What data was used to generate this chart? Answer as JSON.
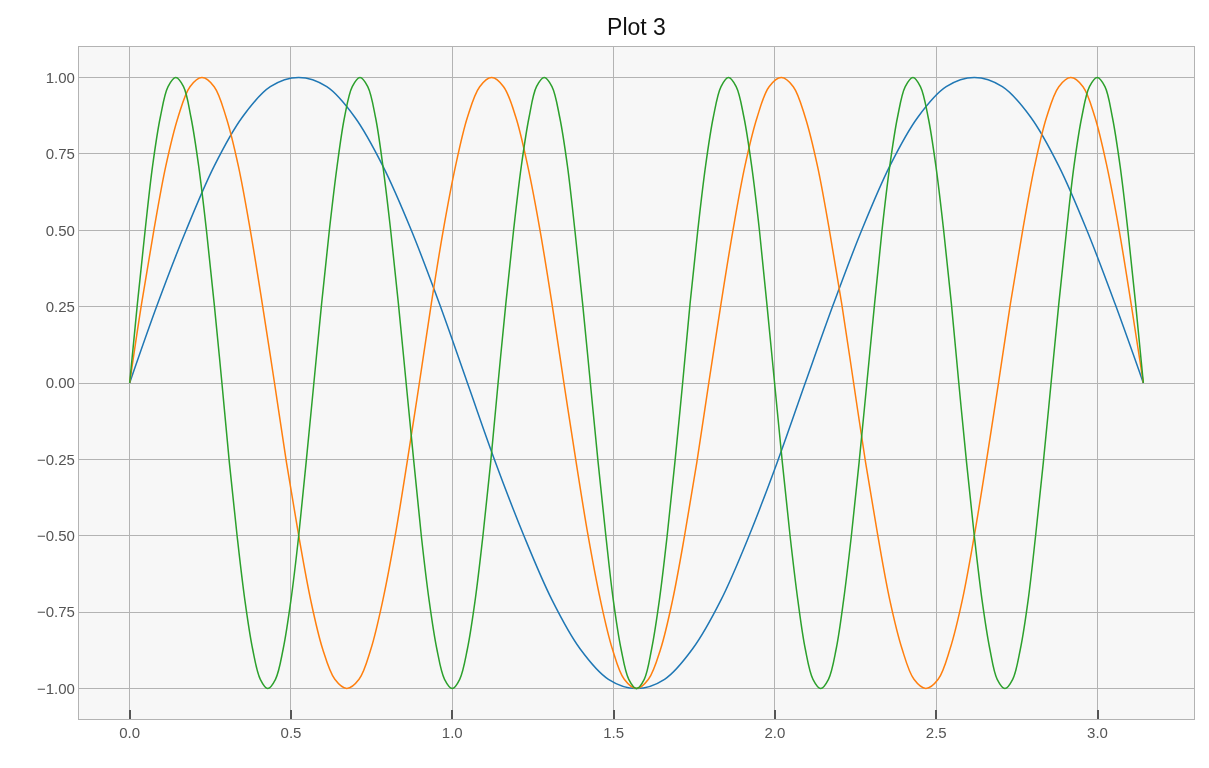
{
  "chart_data": {
    "type": "line",
    "title": "Plot 3",
    "series": [
      {
        "color": "#1f77b4",
        "x": [
          0,
          0.087,
          0.175,
          0.262,
          0.349,
          0.436,
          0.524,
          0.611,
          0.698,
          0.785,
          0.873,
          0.96,
          1.047,
          1.134,
          1.222,
          1.309,
          1.396,
          1.484,
          1.571,
          1.658,
          1.745,
          1.833,
          1.92,
          2.007,
          2.094,
          2.182,
          2.269,
          2.356,
          2.443,
          2.531,
          2.618,
          2.705,
          2.793,
          2.88,
          2.967,
          3.054,
          3.142
        ],
        "values": [
          0,
          0.26,
          0.5,
          0.71,
          0.87,
          0.97,
          1,
          0.97,
          0.87,
          0.71,
          0.5,
          0.26,
          0,
          -0.26,
          -0.5,
          -0.71,
          -0.87,
          -0.97,
          -1,
          -0.97,
          -0.87,
          -0.71,
          -0.5,
          -0.26,
          0,
          0.26,
          0.5,
          0.71,
          0.87,
          0.97,
          1,
          0.97,
          0.87,
          0.71,
          0.5,
          0.26,
          0
        ]
      },
      {
        "color": "#ff7f0e",
        "x": [
          0,
          0.037,
          0.075,
          0.112,
          0.15,
          0.187,
          0.224,
          0.262,
          0.299,
          0.337,
          0.374,
          0.411,
          0.449,
          0.486,
          0.524,
          0.561,
          0.598,
          0.636,
          0.673,
          0.711,
          0.748,
          0.785,
          0.823,
          0.86,
          0.898,
          0.935,
          0.972,
          1.01,
          1.047,
          1.085,
          1.122,
          1.159,
          1.197,
          1.234,
          1.272,
          1.309,
          1.346,
          1.384,
          1.421,
          1.459,
          1.496,
          1.533,
          1.571,
          1.608,
          1.646,
          1.683,
          1.72,
          1.758,
          1.795,
          1.833,
          1.87,
          1.907,
          1.945,
          1.982,
          2.02,
          2.057,
          2.094,
          2.132,
          2.169,
          2.207,
          2.244,
          2.281,
          2.319,
          2.356,
          2.394,
          2.431,
          2.468,
          2.506,
          2.543,
          2.581,
          2.618,
          2.655,
          2.693,
          2.73,
          2.768,
          2.805,
          2.842,
          2.88,
          2.917,
          2.955,
          2.992,
          3.029,
          3.067,
          3.104,
          3.142
        ],
        "values": [
          0,
          0.26,
          0.5,
          0.71,
          0.87,
          0.97,
          1,
          0.97,
          0.87,
          0.71,
          0.5,
          0.26,
          0,
          -0.26,
          -0.5,
          -0.71,
          -0.87,
          -0.97,
          -1,
          -0.97,
          -0.87,
          -0.71,
          -0.5,
          -0.26,
          0,
          0.26,
          0.5,
          0.71,
          0.87,
          0.97,
          1,
          0.97,
          0.87,
          0.71,
          0.5,
          0.26,
          0,
          -0.26,
          -0.5,
          -0.71,
          -0.87,
          -0.97,
          -1,
          -0.97,
          -0.87,
          -0.71,
          -0.5,
          -0.26,
          0,
          0.26,
          0.5,
          0.71,
          0.87,
          0.97,
          1,
          0.97,
          0.87,
          0.71,
          0.5,
          0.26,
          0,
          -0.26,
          -0.5,
          -0.71,
          -0.87,
          -0.97,
          -1,
          -0.97,
          -0.87,
          -0.71,
          -0.5,
          -0.26,
          0,
          0.26,
          0.5,
          0.71,
          0.87,
          0.97,
          1,
          0.97,
          0.87,
          0.71,
          0.5,
          0.26,
          0
        ]
      },
      {
        "color": "#2ca02c",
        "x": [
          0,
          0.024,
          0.048,
          0.071,
          0.095,
          0.119,
          0.143,
          0.167,
          0.19,
          0.214,
          0.238,
          0.262,
          0.286,
          0.309,
          0.333,
          0.357,
          0.381,
          0.405,
          0.428,
          0.452,
          0.476,
          0.5,
          0.524,
          0.547,
          0.571,
          0.595,
          0.619,
          0.643,
          0.666,
          0.69,
          0.714,
          0.738,
          0.762,
          0.785,
          0.809,
          0.833,
          0.857,
          0.881,
          0.904,
          0.928,
          0.952,
          0.976,
          1.0,
          1.023,
          1.047,
          1.071,
          1.095,
          1.119,
          1.142,
          1.166,
          1.19,
          1.214,
          1.238,
          1.261,
          1.285,
          1.309,
          1.333,
          1.357,
          1.38,
          1.404,
          1.428,
          1.452,
          1.476,
          1.499,
          1.523,
          1.547,
          1.571,
          1.595,
          1.618,
          1.642,
          1.666,
          1.69,
          1.714,
          1.737,
          1.761,
          1.785,
          1.809,
          1.833,
          1.856,
          1.88,
          1.904,
          1.928,
          1.952,
          1.975,
          1.999,
          2.023,
          2.047,
          2.071,
          2.094,
          2.118,
          2.142,
          2.166,
          2.19,
          2.213,
          2.237,
          2.261,
          2.285,
          2.309,
          2.332,
          2.356,
          2.38,
          2.404,
          2.428,
          2.451,
          2.475,
          2.499,
          2.523,
          2.547,
          2.57,
          2.594,
          2.618,
          2.642,
          2.666,
          2.689,
          2.713,
          2.737,
          2.761,
          2.785,
          2.808,
          2.832,
          2.856,
          2.88,
          2.904,
          2.927,
          2.951,
          2.975,
          2.999,
          3.023,
          3.046,
          3.07,
          3.094,
          3.118,
          3.142
        ],
        "values": [
          0,
          0.26,
          0.5,
          0.71,
          0.87,
          0.97,
          1,
          0.97,
          0.87,
          0.71,
          0.5,
          0.26,
          0,
          -0.26,
          -0.5,
          -0.71,
          -0.87,
          -0.97,
          -1,
          -0.97,
          -0.87,
          -0.71,
          -0.5,
          -0.26,
          0,
          0.26,
          0.5,
          0.71,
          0.87,
          0.97,
          1,
          0.97,
          0.87,
          0.71,
          0.5,
          0.26,
          0,
          -0.26,
          -0.5,
          -0.71,
          -0.87,
          -0.97,
          -1,
          -0.97,
          -0.87,
          -0.71,
          -0.5,
          -0.26,
          0,
          0.26,
          0.5,
          0.71,
          0.87,
          0.97,
          1,
          0.97,
          0.87,
          0.71,
          0.5,
          0.26,
          0,
          -0.26,
          -0.5,
          -0.71,
          -0.87,
          -0.97,
          -1,
          -0.97,
          -0.87,
          -0.71,
          -0.5,
          -0.26,
          0,
          0.26,
          0.5,
          0.71,
          0.87,
          0.97,
          1,
          0.97,
          0.87,
          0.71,
          0.5,
          0.26,
          0,
          -0.26,
          -0.5,
          -0.71,
          -0.87,
          -0.97,
          -1,
          -0.97,
          -0.87,
          -0.71,
          -0.5,
          -0.26,
          0,
          0.26,
          0.5,
          0.71,
          0.87,
          0.97,
          1,
          0.97,
          0.87,
          0.71,
          0.5,
          0.26,
          0,
          -0.26,
          -0.5,
          -0.71,
          -0.87,
          -0.97,
          -1,
          -0.97,
          -0.87,
          -0.71,
          -0.5,
          -0.26,
          0,
          0.26,
          0.5,
          0.71,
          0.87,
          0.97,
          1,
          0.97,
          0.87,
          0.71,
          0.5,
          0.26,
          0
        ]
      }
    ],
    "xlim": [
      -0.157,
      3.299
    ],
    "ylim": [
      -1.1,
      1.1
    ],
    "xticks": [
      {
        "value": 0,
        "label": "0.0"
      },
      {
        "value": 0.5,
        "label": "0.5"
      },
      {
        "value": 1,
        "label": "1.0"
      },
      {
        "value": 1.5,
        "label": "1.5"
      },
      {
        "value": 2,
        "label": "2.0"
      },
      {
        "value": 2.5,
        "label": "2.5"
      },
      {
        "value": 3,
        "label": "3.0"
      }
    ],
    "yticks": [
      {
        "value": -1,
        "label": "−1.00"
      },
      {
        "value": -0.75,
        "label": "−0.75"
      },
      {
        "value": -0.5,
        "label": "−0.50"
      },
      {
        "value": -0.25,
        "label": "−0.25"
      },
      {
        "value": 0,
        "label": "0.00"
      },
      {
        "value": 0.25,
        "label": "0.25"
      },
      {
        "value": 0.5,
        "label": "0.50"
      },
      {
        "value": 0.75,
        "label": "0.75"
      },
      {
        "value": 1,
        "label": "1.00"
      }
    ],
    "grid": true,
    "line_style": "solid"
  }
}
